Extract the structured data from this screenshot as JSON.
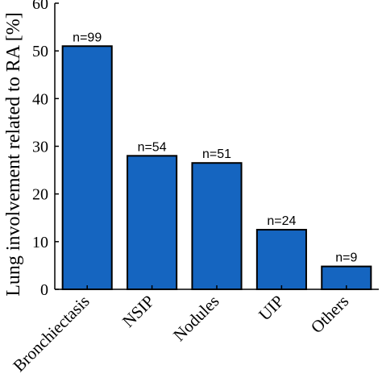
{
  "chart_data": {
    "type": "bar",
    "categories": [
      "Bronchiectasis",
      "NSIP",
      "Nodules",
      "UIP",
      "Others"
    ],
    "values": [
      51,
      28,
      26.5,
      12.5,
      4.8
    ],
    "data_labels": [
      "n=99",
      "n=54",
      "n=51",
      "n=24",
      "n=9"
    ],
    "ylabel": "Lung involvement related to RA [%]",
    "xlabel": "",
    "ylim": [
      0,
      60
    ],
    "yticks": [
      "0",
      "10",
      "20",
      "30",
      "40",
      "50",
      "60"
    ],
    "grid": false,
    "legend": "none",
    "bar_color": "#1565C0"
  }
}
